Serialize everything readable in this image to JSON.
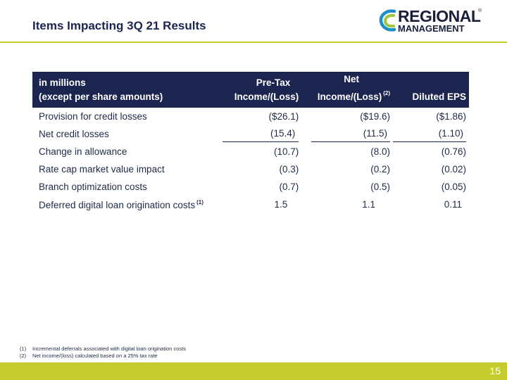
{
  "header": {
    "title": "Items Impacting 3Q 21 Results",
    "logo_line1": "REGIONAL",
    "logo_line2": "MANAGEMENT",
    "logo_mark_symbol": "®"
  },
  "table": {
    "col0_line1": "in millions",
    "col0_line2": "(except per share amounts)",
    "col1_line1": "Pre-Tax",
    "col1_line2": "Income/(Loss)",
    "col2_line1": "Net",
    "col2_line2": "Income/(Loss)",
    "col2_note": "(2)",
    "col3_line2": "Diluted EPS",
    "rows": [
      {
        "label": "Provision for credit losses",
        "note": "",
        "pretax": "($26.1)",
        "net": "($19.6)",
        "eps": "($1.86)"
      },
      {
        "label": "Net credit losses",
        "note": "",
        "pretax": "(15.4)",
        "net": "(11.5)",
        "eps": "(1.10)"
      },
      {
        "label": "Change in allowance",
        "note": "",
        "pretax": "(10.7)",
        "net": "(8.0)",
        "eps": "(0.76)"
      },
      {
        "label": "Rate cap market value impact",
        "note": "",
        "pretax": "(0.3)",
        "net": "(0.2)",
        "eps": "(0.02)"
      },
      {
        "label": "Branch optimization costs",
        "note": "",
        "pretax": "(0.7)",
        "net": "(0.5)",
        "eps": "(0.05)"
      },
      {
        "label": "Deferred digital loan origination costs",
        "note": "(1)",
        "pretax": "1.5",
        "net": "1.1",
        "eps": "0.11"
      }
    ]
  },
  "footnotes": [
    {
      "num": "(1)",
      "text": "Incremental deferrals associated with digital loan origination costs"
    },
    {
      "num": "(2)",
      "text": "Net income/(loss) calculated based on a 25% tax rate"
    }
  ],
  "footer": {
    "page_number": "15"
  },
  "colors": {
    "navy": "#1c2550",
    "accent": "#c5cc2e"
  }
}
